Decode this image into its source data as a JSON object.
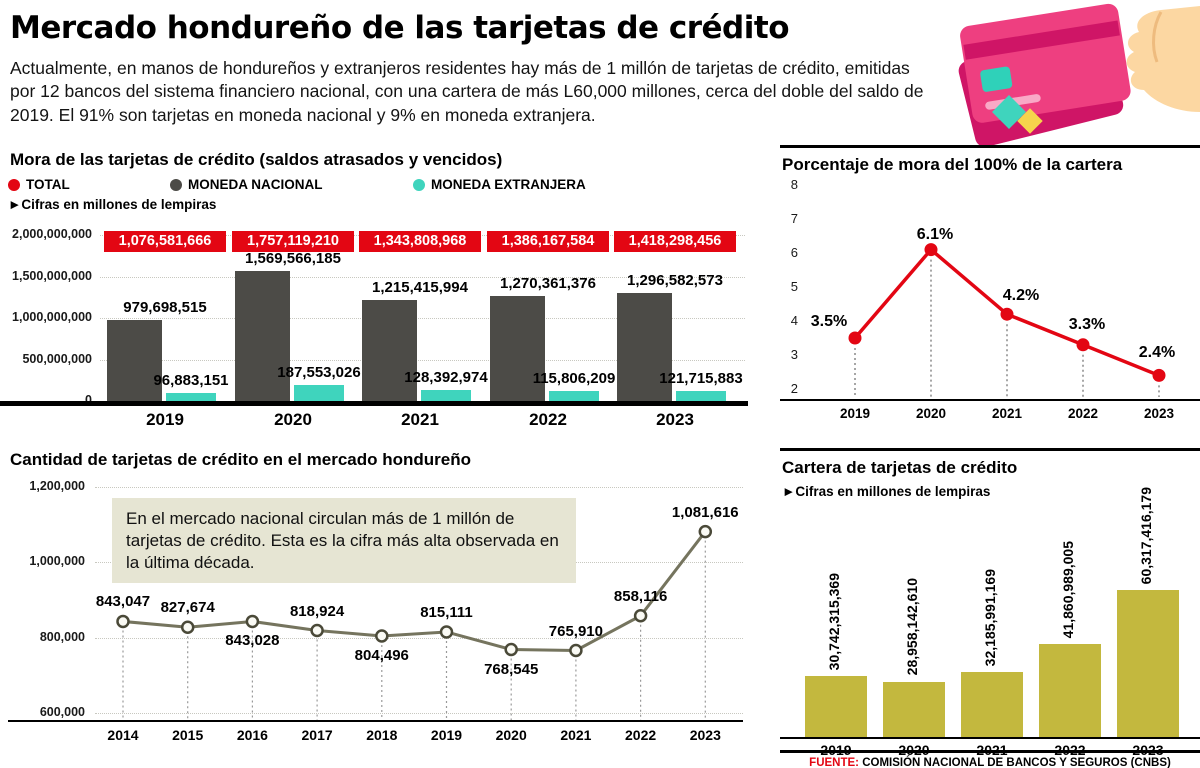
{
  "page": {
    "title": "Mercado hondureño de las tarjetas de crédito",
    "intro": "Actualmente, en manos de hondureños y extranjeros residentes hay  más de 1 millón de tarjetas de crédito, emitidas por 12 bancos del sistema financiero nacional, con una cartera de más L60,000 millones, cerca del doble del saldo de 2019. El 91% son tarjetas en moneda nacional y 9% en moneda extranjera.",
    "source_label": "FUENTE:",
    "source_text": " COMISIÓN NACIONAL DE BANCOS Y SEGUROS (CNBS)"
  },
  "colors": {
    "red": "#e30613",
    "dark_gray": "#4c4b47",
    "teal": "#3fd4bd",
    "olive": "#c3b83e",
    "line_olive": "#75745e",
    "annotation_bg": "#e6e5d3"
  },
  "chart_data": [
    {
      "id": "mora",
      "type": "bar",
      "title": "Mora de las tarjetas de crédito (saldos atrasados y vencidos)",
      "note": "►Cifras en millones de lempiras",
      "categories": [
        "2019",
        "2020",
        "2021",
        "2022",
        "2023"
      ],
      "series": [
        {
          "name": "TOTAL",
          "color": "#e30613",
          "values": [
            1076581666,
            1757119210,
            1343808968,
            1386167584,
            1418298456
          ],
          "labels": [
            "1,076,581,666",
            "1,757,119,210",
            "1,343,808,968",
            "1,386,167,584",
            "1,418,298,456"
          ]
        },
        {
          "name": "MONEDA NACIONAL",
          "color": "#4c4b47",
          "values": [
            979698515,
            1569566185,
            1215415994,
            1270361376,
            1296582573
          ],
          "labels": [
            "979,698,515",
            "1,569,566,185",
            "1,215,415,994",
            "1,270,361,376",
            "1,296,582,573"
          ]
        },
        {
          "name": "MONEDA EXTRANJERA",
          "color": "#3fd4bd",
          "values": [
            96883151,
            187553026,
            128392974,
            115806209,
            121715883
          ],
          "labels": [
            "96,883,151",
            "187,553,026",
            "128,392,974",
            "115,806,209",
            "121,715,883"
          ]
        }
      ],
      "yticks": [
        "2,000,000,000",
        "1,500,000,000",
        "1,000,000,000",
        "500,000,000",
        "0"
      ],
      "ylim": [
        0,
        2000000000
      ],
      "legend_position": "top"
    },
    {
      "id": "mora-porcentaje",
      "type": "line",
      "title": "Porcentaje de mora del 100% de la cartera",
      "categories": [
        "2019",
        "2020",
        "2021",
        "2022",
        "2023"
      ],
      "values": [
        3.5,
        6.1,
        4.2,
        3.3,
        2.4
      ],
      "labels": [
        "3.5%",
        "6.1%",
        "4.2%",
        "3.3%",
        "2.4%"
      ],
      "yticks": [
        8,
        7,
        6,
        5,
        4,
        3,
        2
      ],
      "ylim": [
        2,
        8
      ],
      "color": "#e30613",
      "grid": "dotted-vertical"
    },
    {
      "id": "cantidad-tarjetas",
      "type": "line",
      "title": "Cantidad de tarjetas de crédito en el mercado hondureño",
      "categories": [
        "2014",
        "2015",
        "2016",
        "2017",
        "2018",
        "2019",
        "2020",
        "2021",
        "2022",
        "2023"
      ],
      "values": [
        843047,
        827674,
        843028,
        818924,
        804496,
        815111,
        768545,
        765910,
        858116,
        1081616
      ],
      "labels": [
        "843,047",
        "827,674",
        "843,028",
        "818,924",
        "804,496",
        "815,111",
        "768,545",
        "765,910",
        "858,116",
        "1,081,616"
      ],
      "label_positions": [
        "above",
        "above",
        "below",
        "above",
        "below",
        "above",
        "below",
        "above",
        "above",
        "above"
      ],
      "yticks": [
        "1,200,000",
        "1,000,000",
        "800,000",
        "600,000"
      ],
      "ylim": [
        600000,
        1200000
      ],
      "color": "#75745e",
      "annotation": "En el mercado nacional circulan más de 1  millón de tarjetas de crédito. Esta es la cifra más alta observada en la última década."
    },
    {
      "id": "cartera",
      "type": "bar",
      "title": "Cartera de tarjetas de crédito",
      "note": "►Cifras en millones de lempiras",
      "categories": [
        "2019",
        "2020",
        "2021",
        "2022",
        "2023"
      ],
      "values": [
        30742315369,
        28958142610,
        32185991169,
        41860989005,
        60317416179
      ],
      "labels": [
        "30,742,315,369",
        "28,958,142,610",
        "32,185,991,169",
        "41,860,989,005",
        "60,317,416,179"
      ],
      "color": "#c3b83e",
      "ylim": [
        0,
        60317416179
      ]
    }
  ]
}
